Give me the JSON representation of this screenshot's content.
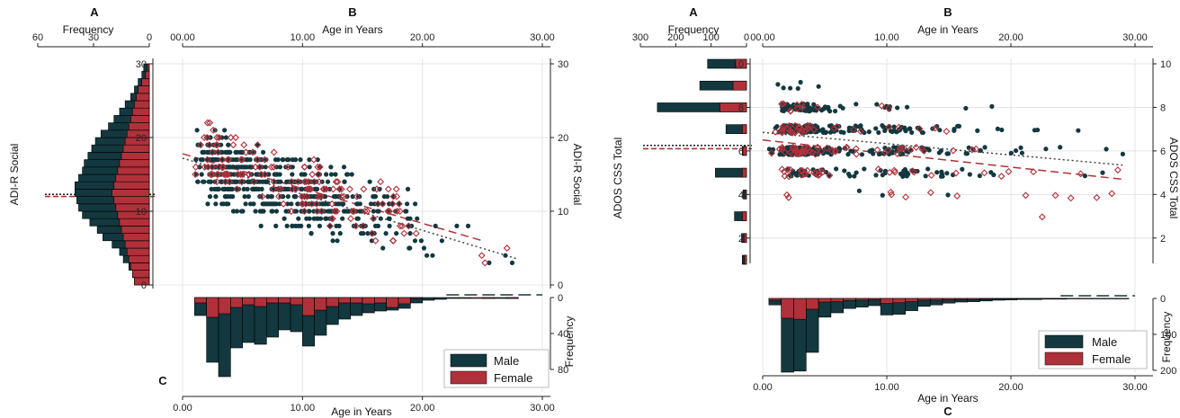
{
  "colors": {
    "male": "#13383f",
    "female": "#b0313a",
    "grid": "#e4e4e4",
    "frame": "#222222",
    "fit_male": "#444444"
  },
  "legend": {
    "male": "Male",
    "female": "Female"
  },
  "chart_data": [
    {
      "type": "scatter",
      "panel": "left",
      "panel_labels": {
        "top_left": "A",
        "top_mid": "B",
        "bottom": "C"
      },
      "x_top_label": "Age in Years",
      "x_bottom_label": "Age in Years",
      "y_label_left": "ADI-R Social",
      "y_label_right": "ADI-R Social",
      "hist_left_label": "Frequency",
      "hist_bottom_label": "Frequency",
      "xlim": [
        0,
        30
      ],
      "ylim": [
        0,
        30
      ],
      "x_ticks": [
        "00.00",
        "10.00",
        "20.00",
        "30.00"
      ],
      "x_ticks_bottom": [
        "0.00",
        "10.00",
        "20.00",
        "30.00"
      ],
      "y_ticks": [
        "0",
        "10",
        "20",
        "30"
      ],
      "hist_left_ticks": [
        "60",
        "30",
        "0"
      ],
      "hist_left_max": 60,
      "hist_bottom_ticks": [
        "0",
        "40",
        "80"
      ],
      "hist_bottom_max": 80,
      "hist_y_counts": {
        "bins": [
          0,
          1,
          2,
          3,
          4,
          5,
          6,
          7,
          8,
          9,
          10,
          11,
          12,
          13,
          14,
          15,
          16,
          17,
          18,
          19,
          20,
          21,
          22,
          23,
          24,
          25,
          26,
          27,
          28,
          29
        ],
        "male": [
          8,
          9,
          11,
          14,
          16,
          20,
          25,
          28,
          32,
          36,
          38,
          39,
          40,
          40,
          38,
          36,
          35,
          33,
          31,
          29,
          26,
          22,
          19,
          16,
          13,
          10,
          8,
          6,
          4,
          3
        ],
        "female": [
          8,
          9,
          10,
          11,
          12,
          13,
          14,
          15,
          16,
          17,
          18,
          19,
          20,
          19,
          18,
          17,
          16,
          15,
          14,
          13,
          12,
          11,
          10,
          9,
          8,
          7,
          6,
          4,
          2,
          1
        ]
      },
      "hist_x_counts": {
        "bins": [
          1.5,
          2.5,
          3.5,
          4.5,
          5.5,
          6.5,
          7.5,
          8.5,
          9.5,
          10.5,
          11.5,
          12.5,
          13.5,
          14.5,
          15.5,
          16.5,
          17.5,
          18.5,
          19.5,
          20.5,
          21.5,
          22.5,
          23.5,
          24.5,
          25.5,
          26.5,
          27.5
        ],
        "male": [
          20,
          72,
          88,
          56,
          50,
          52,
          44,
          36,
          38,
          54,
          42,
          30,
          24,
          20,
          17,
          15,
          14,
          12,
          6,
          3,
          2,
          1,
          1,
          0,
          1,
          1,
          1
        ],
        "female": [
          6,
          22,
          18,
          11,
          8,
          10,
          6,
          6,
          8,
          20,
          14,
          10,
          6,
          6,
          7,
          6,
          11,
          7,
          1,
          0,
          0,
          0,
          0,
          1,
          1,
          0,
          1
        ]
      },
      "fit": {
        "male": [
          [
            0,
            17.2
          ],
          [
            28,
            3.5
          ]
        ],
        "female": [
          [
            0,
            17.8
          ],
          [
            25,
            6
          ]
        ]
      }
    },
    {
      "type": "scatter",
      "panel": "right",
      "panel_labels": {
        "top_left": "A",
        "top_mid": "B",
        "bottom": "C"
      },
      "x_top_label": "Age in Years",
      "x_bottom_label": "Age in Years",
      "y_label_left": "ADOS CSS Total",
      "y_label_right": "ADOS CSS Total",
      "hist_left_label": "Frequency",
      "hist_bottom_label": "Frequency",
      "xlim": [
        0,
        30
      ],
      "ylim": [
        1,
        10
      ],
      "x_ticks": [
        "00.00",
        "10.00",
        "20.00",
        "30.00"
      ],
      "x_ticks_bottom": [
        "0.00",
        "10.00",
        "20.00",
        "30.00"
      ],
      "y_ticks": [
        "2",
        "4",
        "6",
        "8",
        "10"
      ],
      "hist_left_ticks": [
        "300",
        "200",
        "100",
        "0"
      ],
      "hist_left_max": 300,
      "hist_bottom_ticks": [
        "0",
        "100",
        "200"
      ],
      "hist_bottom_max": 200,
      "hist_y_counts": {
        "levels": [
          1,
          2,
          3,
          4,
          5,
          6,
          7,
          8,
          9,
          10
        ],
        "male": [
          12,
          14,
          34,
          10,
          88,
          12,
          58,
          252,
          132,
          110
        ],
        "female": [
          6,
          7,
          12,
          4,
          12,
          10,
          12,
          75,
          38,
          32
        ]
      },
      "hist_x_counts": {
        "bins": [
          1,
          2,
          3,
          4,
          5,
          6,
          7,
          8,
          9,
          10,
          11,
          12,
          13,
          14,
          15,
          16,
          17,
          18,
          19,
          20,
          21,
          22,
          23,
          24,
          25,
          26,
          27,
          28,
          29
        ],
        "male": [
          18,
          205,
          202,
          150,
          52,
          40,
          28,
          24,
          20,
          46,
          44,
          34,
          22,
          18,
          13,
          10,
          9,
          7,
          5,
          4,
          3,
          3,
          2,
          2,
          1,
          1,
          1,
          1,
          1
        ],
        "female": [
          5,
          55,
          58,
          30,
          10,
          9,
          6,
          5,
          4,
          14,
          12,
          9,
          5,
          5,
          4,
          3,
          3,
          2,
          1,
          1,
          1,
          1,
          1,
          1,
          1,
          1,
          1,
          1,
          1
        ]
      },
      "fit": {
        "male": [
          [
            0,
            6.85
          ],
          [
            29,
            5.35
          ]
        ],
        "female": [
          [
            0,
            6.5
          ],
          [
            29,
            4.7
          ]
        ]
      }
    }
  ]
}
